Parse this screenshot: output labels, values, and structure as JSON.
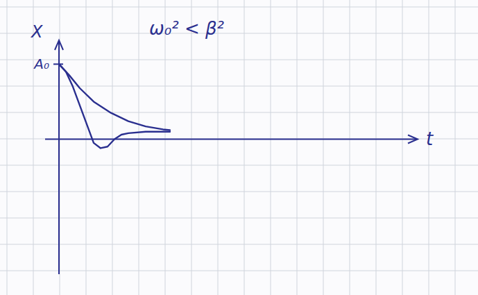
{
  "chart_data": {
    "type": "line",
    "title": "ω₀² < β²",
    "x_label": "t",
    "y_label": "X",
    "xlim": [
      -0.4,
      10.3
    ],
    "ylim": [
      -1.8,
      1.3
    ],
    "xticks": [],
    "yticks": [
      {
        "value": 1,
        "label": "A₀"
      }
    ],
    "tick_labels": "y",
    "series": [
      {
        "color": "#2a2f8f",
        "x": [
          0,
          0.3,
          0.6,
          1,
          1.5,
          2,
          2.5,
          3,
          3.2
        ],
        "values": [
          1,
          0.85,
          0.68,
          0.5,
          0.35,
          0.24,
          0.17,
          0.13,
          0.12
        ]
      },
      {
        "color": "#2a2f8f",
        "x": [
          0,
          0.2,
          0.4,
          0.6,
          0.8,
          1.0,
          1.2,
          1.4,
          1.6,
          1.8,
          2.0,
          2.5,
          3,
          3.2
        ],
        "values": [
          1,
          0.9,
          0.7,
          0.45,
          0.2,
          -0.05,
          -0.12,
          -0.1,
          0,
          0.06,
          0.08,
          0.1,
          0.1,
          0.1
        ]
      }
    ]
  }
}
